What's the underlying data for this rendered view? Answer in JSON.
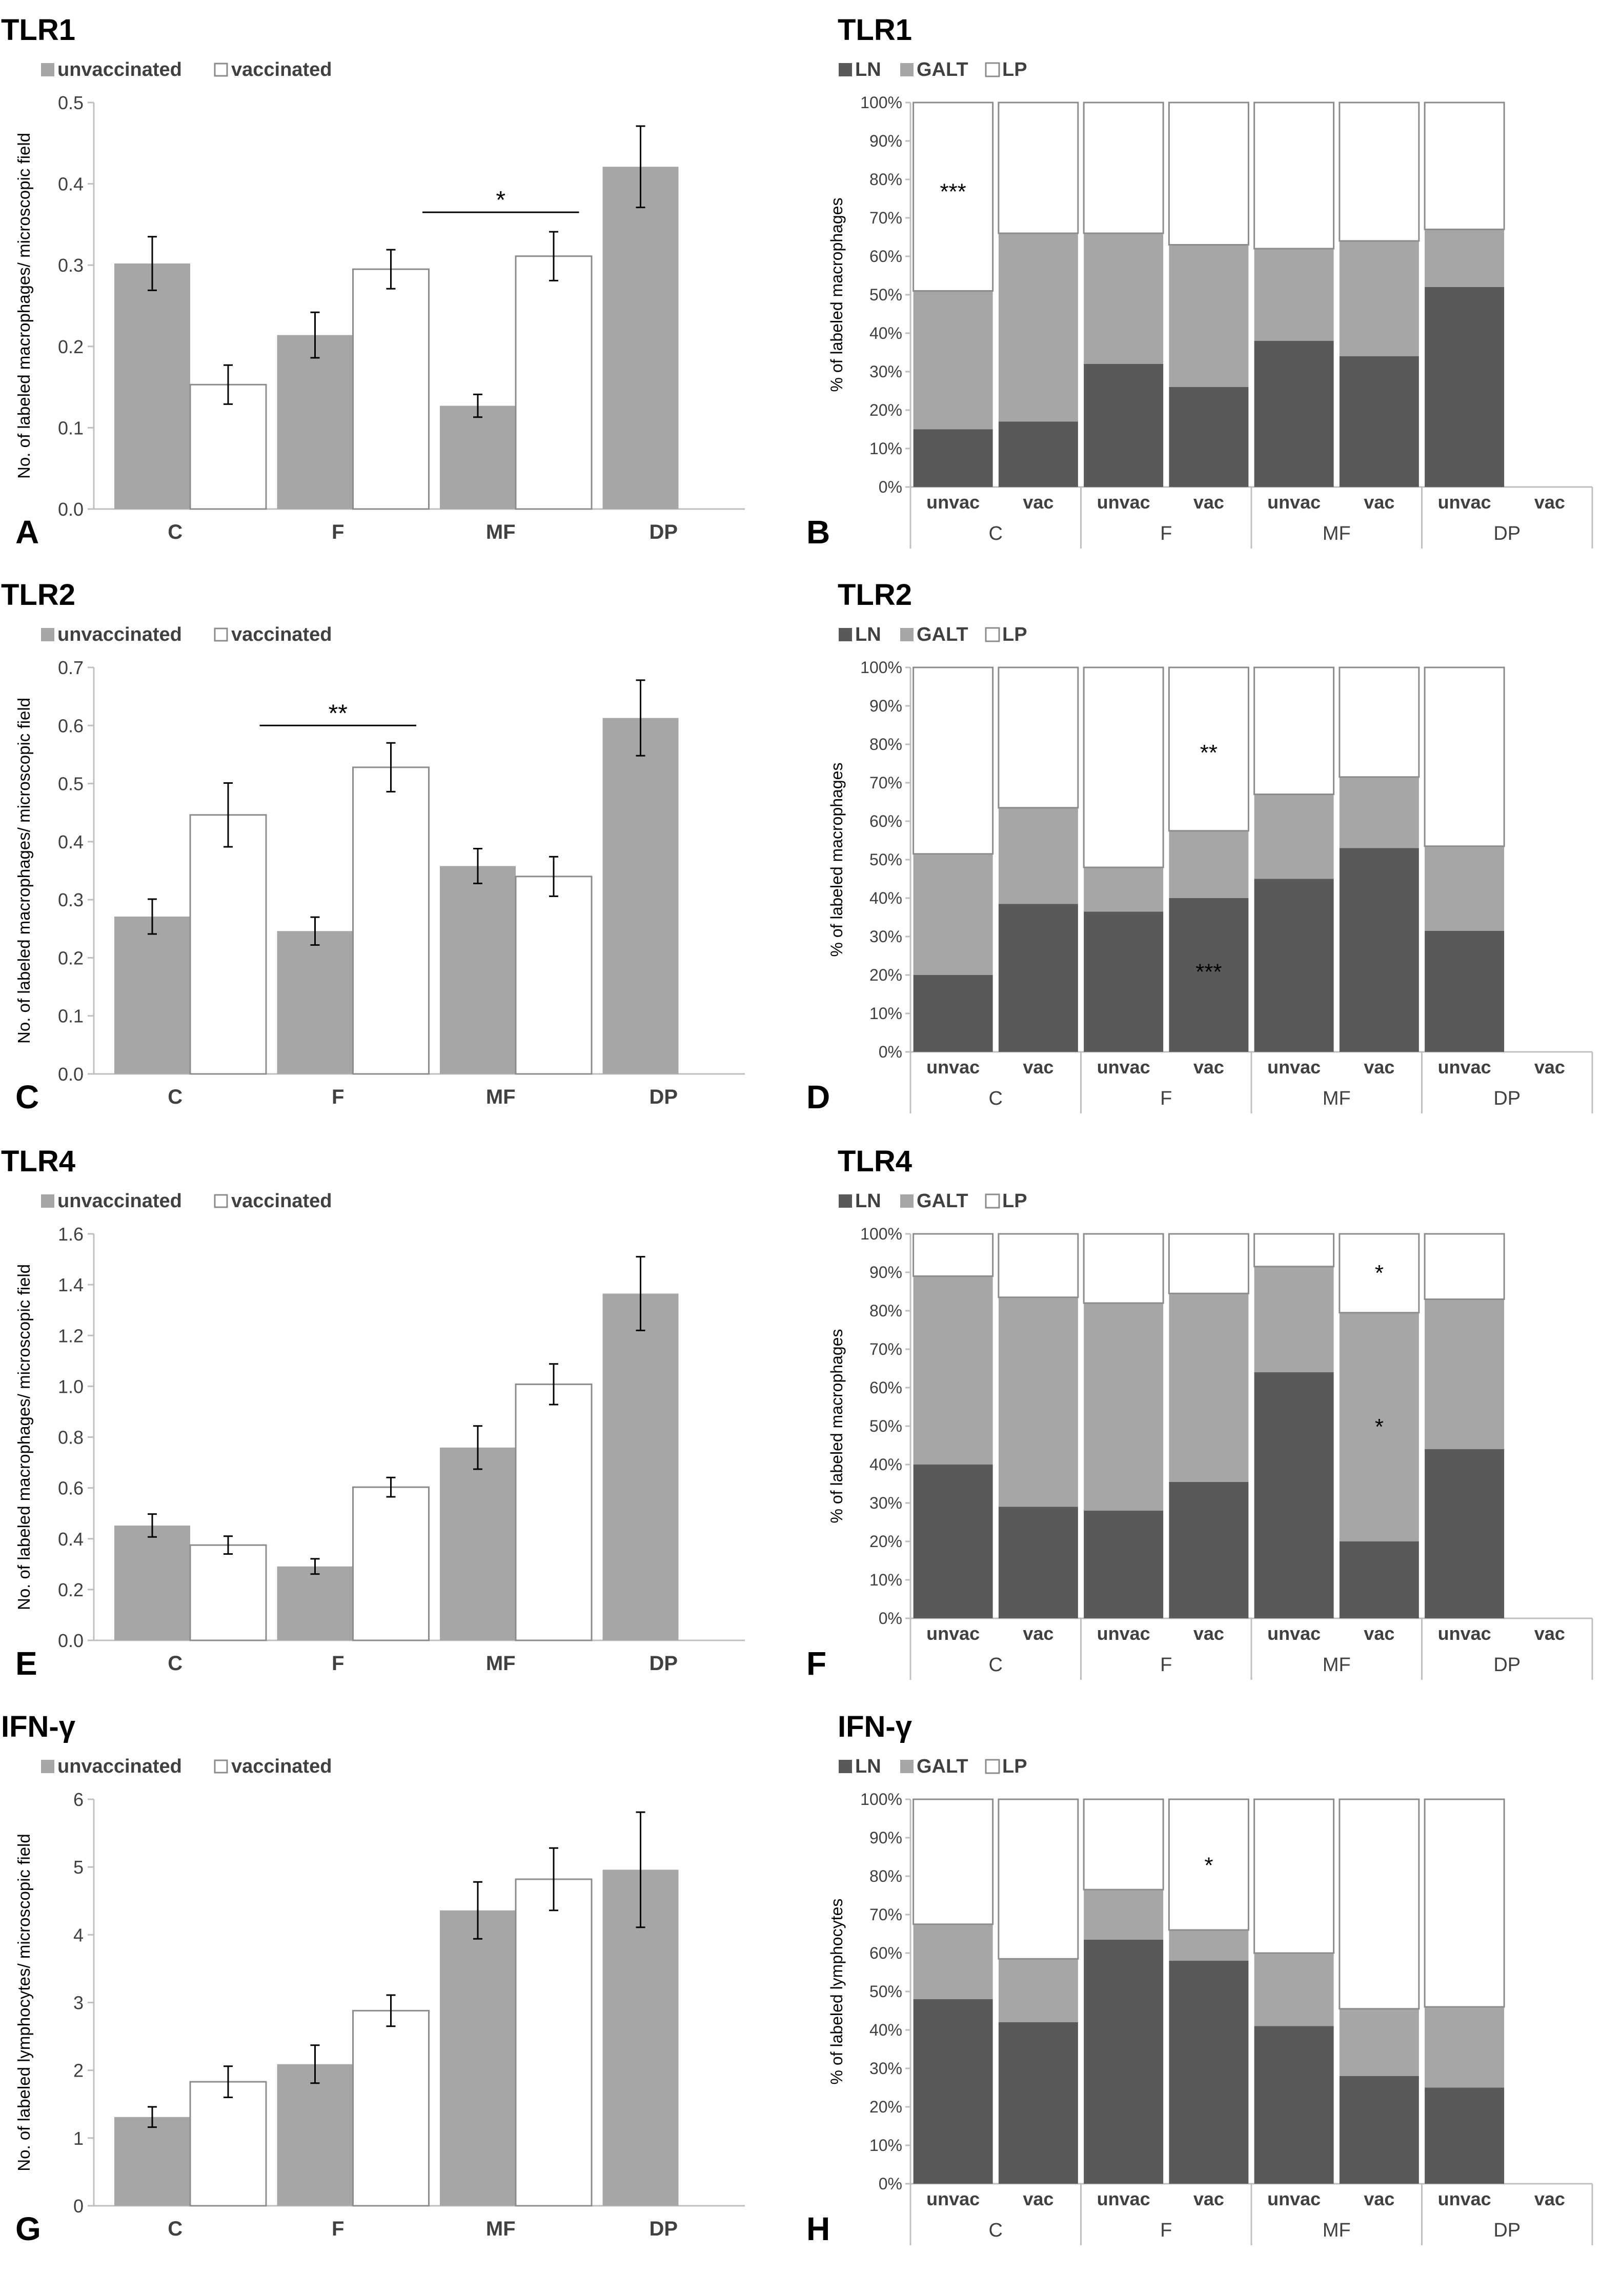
{
  "colors": {
    "unvaccinated": "#a6a6a6",
    "vaccinated": "#ffffff",
    "LN": "#595959",
    "GALT": "#a6a6a6",
    "LP": "#ffffff",
    "axis": "#bfbfbf",
    "text": "#404040"
  },
  "chart_data": [
    {
      "panel": "A",
      "type": "bar",
      "title": "TLR1",
      "legend": [
        "unvaccinated",
        "vaccinated"
      ],
      "legend_position": "top-left",
      "ylabel": "No. of labeled macrophages/ microscopic field",
      "xlabel": "",
      "categories": [
        "C",
        "F",
        "MF",
        "DP"
      ],
      "ylim": [
        0,
        0.5
      ],
      "yticks": [
        "0.0",
        "0.1",
        "0.2",
        "0.3",
        "0.4",
        "0.5"
      ],
      "series": [
        {
          "name": "unvaccinated",
          "values": [
            0.302,
            0.214,
            0.127,
            0.421
          ],
          "errors": [
            0.033,
            0.028,
            0.014,
            0.05
          ]
        },
        {
          "name": "vaccinated",
          "values": [
            0.153,
            0.295,
            0.311,
            null
          ],
          "errors": [
            0.024,
            0.024,
            0.03,
            null
          ]
        }
      ],
      "annotations": [
        {
          "text": "*",
          "from": "MF",
          "to": "MF",
          "y": 0.365
        }
      ]
    },
    {
      "panel": "B",
      "type": "bar",
      "stacked": true,
      "title": "TLR1",
      "legend": [
        "LN",
        "GALT",
        "LP"
      ],
      "legend_position": "top-left",
      "ylabel": "% of labeled macrophages",
      "groups": [
        "C",
        "F",
        "MF",
        "DP"
      ],
      "subcategories": [
        "unvac",
        "vac"
      ],
      "yticks": [
        "0%",
        "10%",
        "20%",
        "30%",
        "40%",
        "50%",
        "60%",
        "70%",
        "80%",
        "90%",
        "100%"
      ],
      "series": [
        {
          "name": "LN",
          "values": [
            15,
            17,
            32,
            26,
            38,
            34,
            52,
            null
          ]
        },
        {
          "name": "GALT",
          "values": [
            36,
            49,
            34,
            37,
            24,
            30,
            15,
            null
          ]
        },
        {
          "name": "LP",
          "values": [
            49,
            34,
            34,
            37,
            38,
            36,
            33,
            null
          ]
        }
      ],
      "annotations": [
        {
          "text": "***",
          "bar": 0,
          "y": 77
        }
      ]
    },
    {
      "panel": "C",
      "type": "bar",
      "title": "TLR2",
      "legend": [
        "unvaccinated",
        "vaccinated"
      ],
      "legend_position": "top-left",
      "ylabel": "No. of labeled macrophages/ microscopic field",
      "xlabel": "",
      "categories": [
        "C",
        "F",
        "MF",
        "DP"
      ],
      "ylim": [
        0,
        0.7
      ],
      "yticks": [
        "0.0",
        "0.1",
        "0.2",
        "0.3",
        "0.4",
        "0.5",
        "0.6",
        "0.7"
      ],
      "series": [
        {
          "name": "unvaccinated",
          "values": [
            0.271,
            0.246,
            0.358,
            0.613
          ],
          "errors": [
            0.03,
            0.024,
            0.03,
            0.065
          ]
        },
        {
          "name": "vaccinated",
          "values": [
            0.446,
            0.528,
            0.34,
            null
          ],
          "errors": [
            0.055,
            0.042,
            0.034,
            null
          ]
        }
      ],
      "annotations": [
        {
          "text": "**",
          "from": "F",
          "to": "F",
          "y": 0.6
        }
      ]
    },
    {
      "panel": "D",
      "type": "bar",
      "stacked": true,
      "title": "TLR2",
      "legend": [
        "LN",
        "GALT",
        "LP"
      ],
      "legend_position": "top-left",
      "ylabel": "% of labeled macrophages",
      "groups": [
        "C",
        "F",
        "MF",
        "DP"
      ],
      "subcategories": [
        "unvac",
        "vac"
      ],
      "yticks": [
        "0%",
        "10%",
        "20%",
        "30%",
        "40%",
        "50%",
        "60%",
        "70%",
        "80%",
        "90%",
        "100%"
      ],
      "series": [
        {
          "name": "LN",
          "values": [
            20,
            38.5,
            36.5,
            40,
            45,
            53,
            31.5,
            null
          ]
        },
        {
          "name": "GALT",
          "values": [
            31.5,
            25,
            11.5,
            17.5,
            22,
            18.5,
            22,
            null
          ]
        },
        {
          "name": "LP",
          "values": [
            48.5,
            36.5,
            52,
            42.5,
            33,
            28.5,
            46.5,
            null
          ]
        }
      ],
      "annotations": [
        {
          "text": "**",
          "bar": 3,
          "y": 78
        },
        {
          "text": "***",
          "bar": 3,
          "y": 21
        }
      ]
    },
    {
      "panel": "E",
      "type": "bar",
      "title": "TLR4",
      "legend": [
        "unvaccinated",
        "vaccinated"
      ],
      "legend_position": "top-left",
      "ylabel": "No. of labeled macrophages/ microscopic field",
      "xlabel": "",
      "categories": [
        "C",
        "F",
        "MF",
        "DP"
      ],
      "ylim": [
        0,
        1.6
      ],
      "yticks": [
        "0.0",
        "0.2",
        "0.4",
        "0.6",
        "0.8",
        "1.0",
        "1.2",
        "1.4",
        "1.6"
      ],
      "series": [
        {
          "name": "unvaccinated",
          "values": [
            0.452,
            0.291,
            0.759,
            1.365
          ],
          "errors": [
            0.045,
            0.03,
            0.085,
            0.145
          ]
        },
        {
          "name": "vaccinated",
          "values": [
            0.375,
            0.603,
            1.008,
            null
          ],
          "errors": [
            0.035,
            0.038,
            0.08,
            null
          ]
        }
      ],
      "annotations": []
    },
    {
      "panel": "F",
      "type": "bar",
      "stacked": true,
      "title": "TLR4",
      "legend": [
        "LN",
        "GALT",
        "LP"
      ],
      "legend_position": "top-left",
      "ylabel": "% of labeled macrophages",
      "groups": [
        "C",
        "F",
        "MF",
        "DP"
      ],
      "subcategories": [
        "unvac",
        "vac"
      ],
      "yticks": [
        "0%",
        "10%",
        "20%",
        "30%",
        "40%",
        "50%",
        "60%",
        "70%",
        "80%",
        "90%",
        "100%"
      ],
      "series": [
        {
          "name": "LN",
          "values": [
            40,
            29,
            28,
            35.5,
            64,
            20,
            44,
            null
          ]
        },
        {
          "name": "GALT",
          "values": [
            49,
            54.5,
            54,
            49,
            27.5,
            59.5,
            39,
            null
          ]
        },
        {
          "name": "LP",
          "values": [
            11,
            16.5,
            18,
            15.5,
            8.5,
            20.5,
            17,
            null
          ]
        }
      ],
      "annotations": [
        {
          "text": "*",
          "bar": 5,
          "y": 90
        },
        {
          "text": "*",
          "bar": 5,
          "y": 50
        }
      ]
    },
    {
      "panel": "G",
      "type": "bar",
      "title": "IFN-γ",
      "legend": [
        "unvaccinated",
        "vaccinated"
      ],
      "legend_position": "top-left",
      "ylabel": "No. of labeled lymphocytes/ microscopic field",
      "xlabel": "",
      "categories": [
        "C",
        "F",
        "MF",
        "DP"
      ],
      "ylim": [
        0,
        6
      ],
      "yticks": [
        "0",
        "1",
        "2",
        "3",
        "4",
        "5",
        "6"
      ],
      "series": [
        {
          "name": "unvaccinated",
          "values": [
            1.31,
            2.09,
            4.36,
            4.96
          ],
          "errors": [
            0.15,
            0.28,
            0.42,
            0.85
          ]
        },
        {
          "name": "vaccinated",
          "values": [
            1.83,
            2.88,
            4.82,
            null
          ],
          "errors": [
            0.23,
            0.23,
            0.46,
            null
          ]
        }
      ],
      "annotations": []
    },
    {
      "panel": "H",
      "type": "bar",
      "stacked": true,
      "title": "IFN-γ",
      "legend": [
        "LN",
        "GALT",
        "LP"
      ],
      "legend_position": "top-left",
      "ylabel": "% of labeled lymphocytes",
      "groups": [
        "C",
        "F",
        "MF",
        "DP"
      ],
      "subcategories": [
        "unvac",
        "vac"
      ],
      "yticks": [
        "0%",
        "10%",
        "20%",
        "30%",
        "40%",
        "50%",
        "60%",
        "70%",
        "80%",
        "90%",
        "100%"
      ],
      "series": [
        {
          "name": "LN",
          "values": [
            48,
            42,
            63.5,
            58,
            41,
            28,
            25,
            null
          ]
        },
        {
          "name": "GALT",
          "values": [
            19.5,
            16.5,
            13,
            8,
            19,
            17.5,
            21,
            null
          ]
        },
        {
          "name": "LP",
          "values": [
            32.5,
            41.5,
            23.5,
            34,
            40,
            54.5,
            54,
            null
          ]
        }
      ],
      "annotations": [
        {
          "text": "*",
          "bar": 3,
          "y": 83
        }
      ]
    }
  ]
}
